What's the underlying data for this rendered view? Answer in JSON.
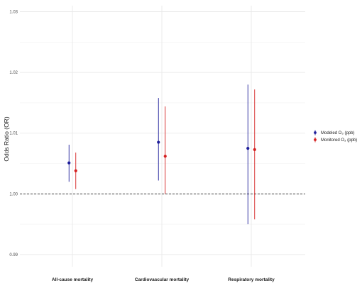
{
  "chart_data": {
    "type": "scatter",
    "subtype": "point-range",
    "title": "",
    "xlabel": "",
    "ylabel": "Odds Ratio (OR)",
    "ylim": [
      0.988,
      1.031
    ],
    "yticks": [
      "0.99",
      "1.00",
      "1.01",
      "1.02",
      "1.03"
    ],
    "ytick_values": [
      0.99,
      1.0,
      1.01,
      1.02,
      1.03
    ],
    "reference_line": 1.0,
    "grid": true,
    "legend_position": "right",
    "categories": [
      "All-cause mortality",
      "Cardiovascular mortality",
      "Respiratory mortality"
    ],
    "series": [
      {
        "name": "Modeled O₃ (ppb)",
        "color": "#1f1f9a",
        "values": [
          1.0051,
          1.0085,
          1.0075
        ],
        "lower": [
          1.002,
          1.0022,
          0.995
        ],
        "upper": [
          1.0081,
          1.0158,
          1.018
        ]
      },
      {
        "name": "Monitored O₃ (ppb)",
        "color": "#d42020",
        "values": [
          1.0038,
          1.0062,
          1.0073
        ],
        "lower": [
          1.0008,
          1.0,
          0.9958
        ],
        "upper": [
          1.0068,
          1.0144,
          1.0172
        ]
      }
    ]
  }
}
